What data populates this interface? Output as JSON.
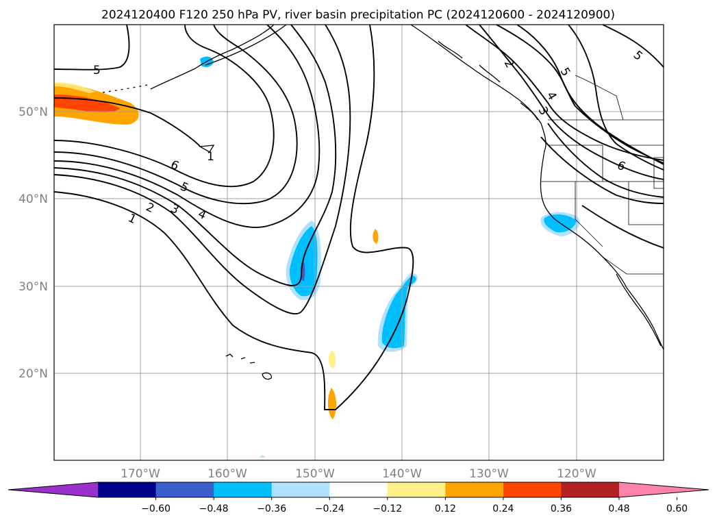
{
  "title": "2024120400 F120 250 hPa PV, river basin precipitation PC (2024120600 - 2024120900)",
  "lat_labels": [
    "50°N",
    "40°N",
    "30°N",
    "20°N"
  ],
  "lon_labels": [
    "170°W",
    "160°W",
    "150°W",
    "140°W",
    "130°W",
    "120°W"
  ],
  "colorbar": {
    "ticks": [
      "−0.60",
      "−0.48",
      "−0.36",
      "−0.24",
      "−0.12",
      "0.12",
      "0.24",
      "0.36",
      "0.48",
      "0.60"
    ],
    "colors": [
      "#9932cc",
      "#00008b",
      "#3a5fcd",
      "#00bfff",
      "#b0e2ff",
      "#ffffff",
      "#fff08a",
      "#ffa500",
      "#ff4500",
      "#b22222",
      "#ff82ab"
    ]
  },
  "contour_labels": {
    "c5_top": "5",
    "c6_left": "6",
    "c5_left": "5",
    "c4_left": "4",
    "c3_left": "3",
    "c2_left": "2",
    "c1_left": "1",
    "c1_mid": "1",
    "c2_right": "2",
    "c5_right": "5",
    "c4_right": "4",
    "c3_right": "3",
    "c6_right": "6",
    "c5_topright": "5"
  }
}
